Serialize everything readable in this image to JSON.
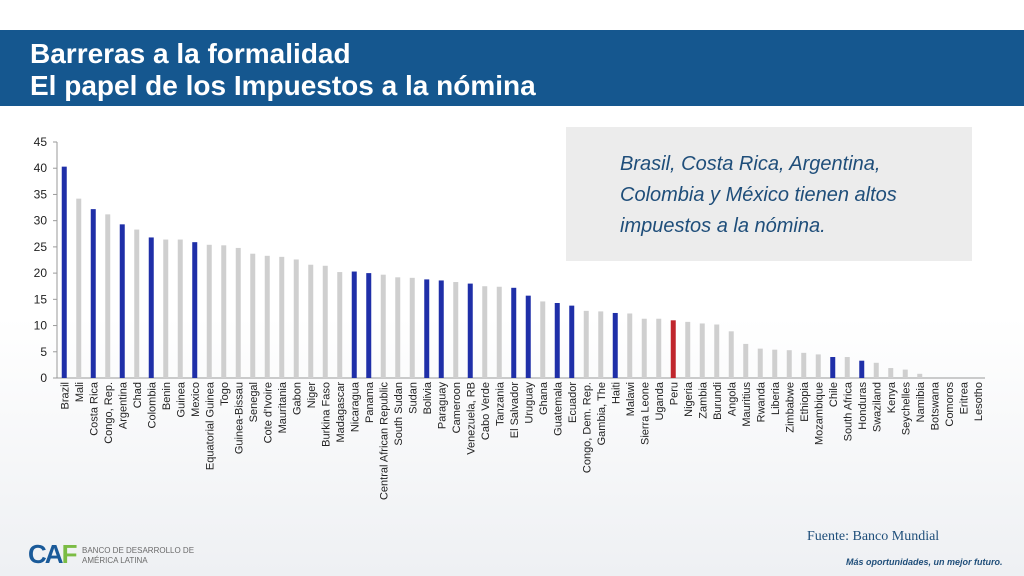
{
  "header": {
    "title_line1": "Barreras a la formalidad",
    "title_line2": "El papel de los Impuestos a la nómina"
  },
  "callout": {
    "text": "Brasil, Costa Rica, Argentina, Colombia y México tienen altos impuestos a la nómina."
  },
  "source": "Fuente: Banco Mundial",
  "footer": {
    "logo_text": "BANCO DE DESARROLLO DE AMÉRICA LATINA",
    "slogan": "Más oportunidades, un mejor futuro."
  },
  "colors": {
    "highlight": "#1f2fa8",
    "peru": "#c0262d",
    "other": "#cfcfcf",
    "header": "#15578f"
  },
  "chart_data": {
    "type": "bar",
    "title": "",
    "xlabel": "",
    "ylabel": "",
    "ylim": [
      0,
      45
    ],
    "yticks": [
      0,
      5,
      10,
      15,
      20,
      25,
      30,
      35,
      40,
      45
    ],
    "grid": false,
    "legend": "none",
    "categories": [
      "Brazil",
      "Mali",
      "Costa Rica",
      "Congo, Rep.",
      "Argentina",
      "Chad",
      "Colombia",
      "Benin",
      "Guinea",
      "Mexico",
      "Equatorial Guinea",
      "Togo",
      "Guinea-Bissau",
      "Senegal",
      "Cote d'Ivoire",
      "Mauritania",
      "Gabon",
      "Niger",
      "Burkina Faso",
      "Madagascar",
      "Nicaragua",
      "Panama",
      "Central African Republic",
      "South Sudan",
      "Sudan",
      "Bolivia",
      "Paraguay",
      "Cameroon",
      "Venezuela, RB",
      "Cabo Verde",
      "Tanzania",
      "El Salvador",
      "Uruguay",
      "Ghana",
      "Guatemala",
      "Ecuador",
      "Congo, Dem. Rep.",
      "Gambia, The",
      "Haiti",
      "Malawi",
      "Sierra Leone",
      "Uganda",
      "Peru",
      "Nigeria",
      "Zambia",
      "Burundi",
      "Angola",
      "Mauritius",
      "Rwanda",
      "Liberia",
      "Zimbabwe",
      "Ethiopia",
      "Mozambique",
      "Chile",
      "South Africa",
      "Honduras",
      "Swaziland",
      "Kenya",
      "Seychelles",
      "Namibia",
      "Botswana",
      "Comoros",
      "Eritrea",
      "Lesotho"
    ],
    "values": [
      40.3,
      34.2,
      32.2,
      31.2,
      29.3,
      28.3,
      26.8,
      26.4,
      26.4,
      25.9,
      25.4,
      25.3,
      24.8,
      23.7,
      23.3,
      23.1,
      22.6,
      21.6,
      21.4,
      20.2,
      20.3,
      20.0,
      19.7,
      19.2,
      19.1,
      18.8,
      18.6,
      18.3,
      18.0,
      17.5,
      17.4,
      17.2,
      15.7,
      14.6,
      14.3,
      13.8,
      12.8,
      12.7,
      12.4,
      12.3,
      11.3,
      11.3,
      11.0,
      10.7,
      10.4,
      10.2,
      8.9,
      6.5,
      5.6,
      5.4,
      5.3,
      4.8,
      4.5,
      4.0,
      4.0,
      3.3,
      2.9,
      1.9,
      1.6,
      0.8,
      0.0,
      0.0,
      0.0,
      0.0
    ],
    "highlight": [
      "blue",
      "grey",
      "blue",
      "grey",
      "blue",
      "grey",
      "blue",
      "grey",
      "grey",
      "blue",
      "grey",
      "grey",
      "grey",
      "grey",
      "grey",
      "grey",
      "grey",
      "grey",
      "grey",
      "grey",
      "blue",
      "blue",
      "grey",
      "grey",
      "grey",
      "blue",
      "blue",
      "grey",
      "blue",
      "grey",
      "grey",
      "blue",
      "blue",
      "grey",
      "blue",
      "blue",
      "grey",
      "grey",
      "blue",
      "grey",
      "grey",
      "grey",
      "red",
      "grey",
      "grey",
      "grey",
      "grey",
      "grey",
      "grey",
      "grey",
      "grey",
      "grey",
      "grey",
      "blue",
      "grey",
      "blue",
      "grey",
      "grey",
      "grey",
      "grey",
      "grey",
      "grey",
      "grey",
      "grey"
    ]
  }
}
